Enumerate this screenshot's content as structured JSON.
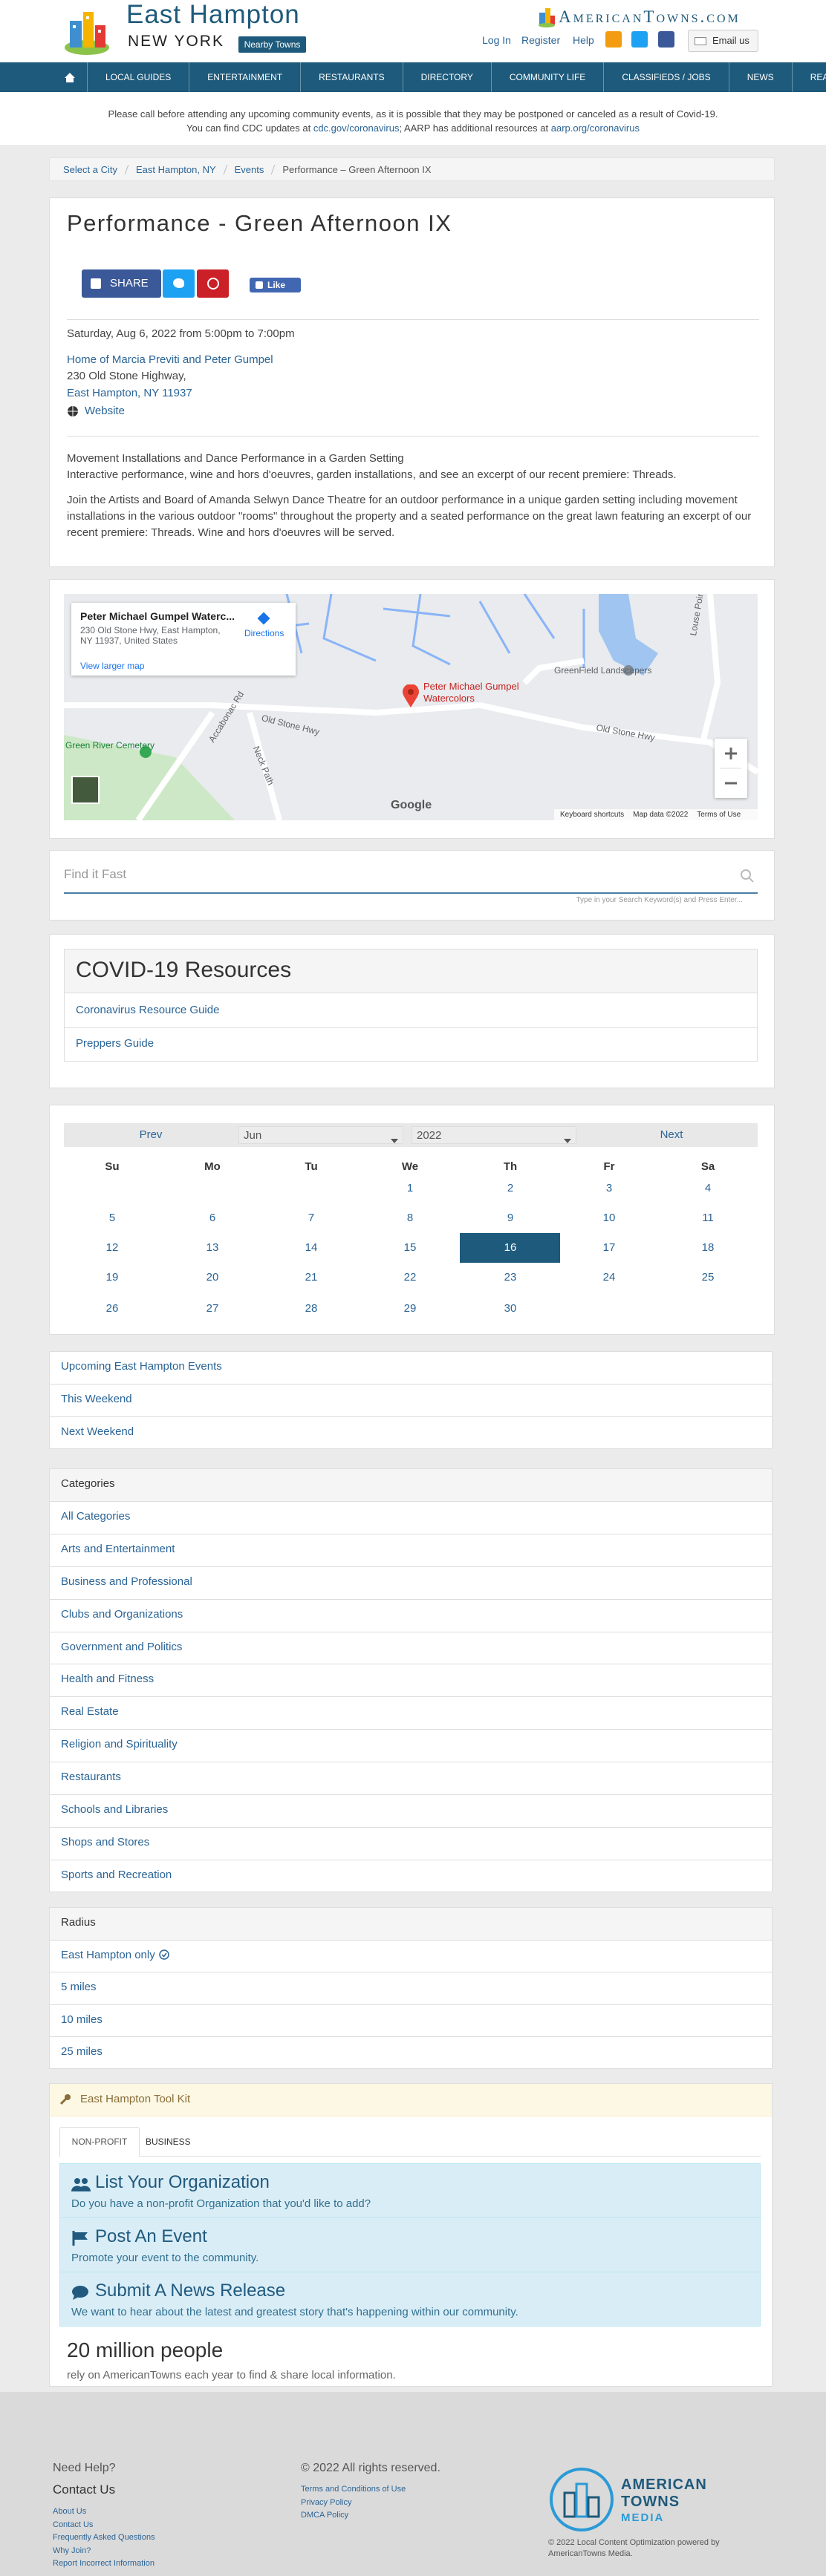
{
  "header": {
    "city": "East Hampton",
    "state": "NEW YORK",
    "nearby": "Nearby Towns",
    "brand": "AmericanTowns.com",
    "links": [
      "Log In",
      "Register",
      "Help"
    ],
    "email": "Email us"
  },
  "nav": [
    "LOCAL GUIDES",
    "ENTERTAINMENT",
    "RESTAURANTS",
    "DIRECTORY",
    "COMMUNITY LIFE",
    "CLASSIFIEDS / JOBS",
    "NEWS",
    "REAL ESTATE"
  ],
  "notice": {
    "line1": "Please call before attending any upcoming community events, as it is possible that they may be postponed or canceled as a result of Covid-19.",
    "line2": [
      "You can find CDC updates at ",
      "cdc.gov/coronavirus",
      "; AARP has additional resources at ",
      "aarp.org/coronavirus"
    ]
  },
  "breadcrumb": [
    "Select a City",
    "East Hampton, NY",
    "Events",
    "Performance – Green Afternoon IX"
  ],
  "event": {
    "title": "Performance - Green Afternoon IX",
    "share": "SHARE",
    "like": "Like",
    "date": "Saturday, Aug 6, 2022 from 5:00pm to 7:00pm",
    "venue": "Home of Marcia Previti and Peter Gumpel",
    "street": "230 Old Stone Highway,",
    "city": "East Hampton, NY 11937",
    "website": "Website",
    "summary": [
      "Movement Installations and Dance Performance in a Garden Setting",
      "Interactive performance, wine and hors d'oeuvres, garden installations, and see an excerpt of our recent premiere: Threads."
    ],
    "description": "Join the Artists and Board of Amanda Selwyn Dance Theatre for an outdoor performance in a unique garden setting including movement installations in the various outdoor \"rooms\" throughout the property and a seated performance on the great lawn featuring an excerpt of our recent premiere: Threads. Wine and hors d'oeuvres will be served."
  },
  "map": {
    "place": "Peter Michael Gumpel Waterc...",
    "address": "230 Old Stone Hwy, East Hampton, NY 11937, United States",
    "directions": "Directions",
    "larger": "View larger map",
    "pin": "Peter Michael Gumpel Watercolors",
    "labels": [
      "Old Stone Hwy",
      "Old Stone Hwy",
      "Accabonac Rd",
      "Neck Path",
      "Green River Cemetery",
      "GreenField Landscapers",
      "Louse Point Rd"
    ],
    "google": "Google",
    "footer": [
      "Keyboard shortcuts",
      "Map data ©2022",
      "Terms of Use"
    ]
  },
  "search": {
    "placeholder": "Find it Fast",
    "hint": "Type in your Search Keyword(s) and Press Enter..."
  },
  "covid": {
    "title": "COVID-19 Resources",
    "links": [
      "Coronavirus Resource Guide",
      "Preppers Guide"
    ]
  },
  "calendar": {
    "prev": "Prev",
    "month": "Jun",
    "year": "2022",
    "next": "Next",
    "days": [
      "Su",
      "Mo",
      "Tu",
      "We",
      "Th",
      "Fr",
      "Sa"
    ],
    "weeks": [
      [
        null,
        null,
        null,
        1,
        2,
        3,
        4
      ],
      [
        5,
        6,
        7,
        8,
        9,
        10,
        11
      ],
      [
        12,
        13,
        14,
        15,
        16,
        17,
        18
      ],
      [
        19,
        20,
        21,
        22,
        23,
        24,
        25
      ],
      [
        26,
        27,
        28,
        29,
        30,
        null,
        null
      ]
    ],
    "selected_day": 16
  },
  "event_links": [
    "Upcoming East Hampton Events",
    "This Weekend",
    "Next Weekend"
  ],
  "categories": {
    "title": "Categories",
    "items": [
      "All Categories",
      "Arts and Entertainment",
      "Business and Professional",
      "Clubs and Organizations",
      "Government and Politics",
      "Health and Fitness",
      "Real Estate",
      "Religion and Spirituality",
      "Restaurants",
      "Schools and Libraries",
      "Shops and Stores",
      "Sports and Recreation"
    ]
  },
  "radius": {
    "title": "Radius",
    "items": [
      "East Hampton only",
      "5 miles",
      "10 miles",
      "25 miles"
    ]
  },
  "toolkit": {
    "title": "East Hampton Tool Kit",
    "tabs": [
      "NON-PROFIT",
      "BUSINESS"
    ],
    "items": [
      {
        "title": "List Your Organization",
        "text": "Do you have a non-profit Organization that you'd like to add?"
      },
      {
        "title": "Post An Event",
        "text": "Promote your event to the community."
      },
      {
        "title": "Submit A News Release",
        "text": "We want to hear about the latest and greatest story that's happening within our community."
      }
    ],
    "stat": "20 million people",
    "stat_text": "rely on AmericanTowns each year to find & share local information."
  },
  "footer": {
    "help": "Need Help?",
    "contact": "Contact Us",
    "links": [
      "About Us",
      "Contact Us",
      "Frequently Asked Questions",
      "Why Join?",
      "Report Incorrect Information"
    ],
    "copyright": "© 2022 All rights reserved.",
    "policies": [
      "Terms and Conditions of Use",
      "Privacy Policy",
      "DMCA Policy"
    ],
    "logo": [
      "AMERICAN",
      "TOWNS",
      "MEDIA"
    ],
    "powered": "© 2022 Local Content Optimization powered by AmericanTowns Media."
  }
}
